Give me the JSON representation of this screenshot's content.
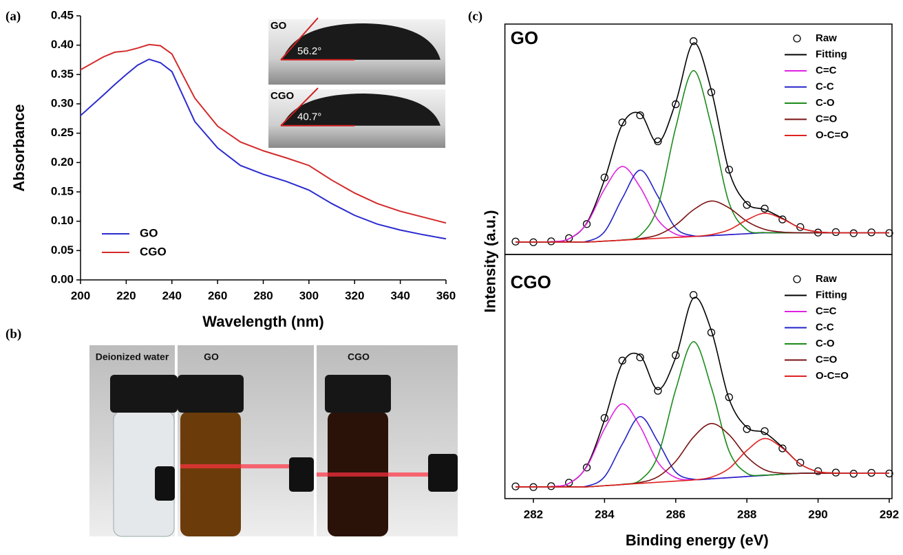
{
  "chart_data": [
    {
      "type": "line",
      "panel": "(a)",
      "x": [
        200,
        210,
        215,
        220,
        225,
        230,
        235,
        240,
        250,
        260,
        270,
        280,
        290,
        300,
        310,
        320,
        330,
        340,
        350,
        360
      ],
      "series": [
        {
          "name": "GO",
          "color": "#2b2bd0",
          "values": [
            0.28,
            0.315,
            0.333,
            0.35,
            0.366,
            0.376,
            0.37,
            0.355,
            0.27,
            0.225,
            0.195,
            0.18,
            0.168,
            0.153,
            0.13,
            0.11,
            0.095,
            0.085,
            0.077,
            0.07
          ]
        },
        {
          "name": "CGO",
          "color": "#d42a2a",
          "values": [
            0.358,
            0.38,
            0.388,
            0.39,
            0.395,
            0.401,
            0.399,
            0.385,
            0.31,
            0.262,
            0.235,
            0.22,
            0.208,
            0.195,
            0.17,
            0.148,
            0.13,
            0.117,
            0.107,
            0.097
          ]
        }
      ],
      "xlabel": "Wavelength (nm)",
      "ylabel": "Absorbance",
      "xlim": [
        200,
        360
      ],
      "xticks": [
        200,
        220,
        240,
        260,
        280,
        300,
        320,
        340,
        360
      ],
      "ylim": [
        0,
        0.45
      ],
      "yticks": [
        {
          "value": 0,
          "label": "0.00"
        },
        {
          "value": 0.05,
          "label": "0.05"
        },
        {
          "value": 0.1,
          "label": "0.10"
        },
        {
          "value": 0.15,
          "label": "0.15"
        },
        {
          "value": 0.2,
          "label": "0.20"
        },
        {
          "value": 0.25,
          "label": "0.25"
        },
        {
          "value": 0.3,
          "label": "0.30"
        },
        {
          "value": 0.35,
          "label": "0.35"
        },
        {
          "value": 0.4,
          "label": "0.40"
        },
        {
          "value": 0.45,
          "label": "0.45"
        }
      ],
      "legend": "lower left",
      "insets": [
        {
          "label": "GO",
          "angle": "56.2°"
        },
        {
          "label": "CGO",
          "angle": "40.7°"
        }
      ]
    },
    {
      "type": "line",
      "panel": "(c)",
      "title": "GO",
      "ylabel": "Intensity (a.u.)",
      "x": [
        281.5,
        282,
        282.5,
        283,
        283.5,
        284,
        284.5,
        285,
        285.5,
        286,
        286.5,
        287,
        287.5,
        288,
        288.5,
        289,
        289.5,
        290,
        290.5,
        291,
        291.5,
        292
      ],
      "xlim": [
        281.2,
        292
      ],
      "ylim": [
        0,
        100
      ],
      "legend": "upper right",
      "series": [
        {
          "name": "Raw",
          "color": "#000000",
          "mode": "markers",
          "values": [
            5.6,
            5.3,
            5.7,
            7.1,
            13.2,
            33.4,
            57.3,
            60.4,
            49.1,
            65.2,
            92.6,
            70.4,
            36.8,
            21.5,
            19.9,
            15.2,
            11.9,
            9.5,
            9.7,
            9.2,
            9.6,
            9.3
          ]
        },
        {
          "name": "Fitting",
          "color": "#000000",
          "values": [
            5.4,
            5.4,
            5.5,
            6.8,
            13.7,
            32.5,
            56.5,
            61.2,
            48.5,
            66.0,
            91.8,
            71.3,
            36.1,
            22.1,
            19.5,
            15.7,
            11.5,
            9.8,
            9.4,
            9.4,
            9.4,
            9.4
          ]
        },
        {
          "name": "C=C",
          "color": "#e020e0",
          "values": [
            5.4,
            5.4,
            5.5,
            6.8,
            13.4,
            28.4,
            38.2,
            29.2,
            15.0,
            8.8,
            7.9,
            8.2,
            8.6,
            9.0,
            9.4,
            9.4,
            9.4,
            9.4,
            9.4,
            9.4,
            9.4,
            9.4
          ]
        },
        {
          "name": "C-C",
          "color": "#2020c8",
          "values": [
            5.4,
            5.4,
            5.4,
            5.4,
            5.7,
            9.9,
            24.4,
            36.6,
            25.2,
            11.5,
            8.1,
            8.2,
            8.6,
            9.0,
            9.4,
            9.4,
            9.4,
            9.4,
            9.4,
            9.4,
            9.4,
            9.4
          ]
        },
        {
          "name": "C-O",
          "color": "#1a8a1a",
          "values": [
            5.4,
            5.4,
            5.4,
            5.4,
            5.4,
            5.8,
            6.3,
            8.3,
            20.8,
            55.1,
            79.8,
            55.9,
            22.4,
            10.7,
            9.5,
            9.4,
            9.4,
            9.4,
            9.4,
            9.4,
            9.4,
            9.4
          ]
        },
        {
          "name": "C=O",
          "color": "#7a1010",
          "values": [
            5.4,
            5.4,
            5.4,
            5.4,
            5.4,
            5.8,
            6.2,
            6.9,
            8.5,
            12.8,
            19.4,
            23.2,
            20.2,
            14.4,
            10.9,
            9.7,
            9.4,
            9.4,
            9.4,
            9.4,
            9.4,
            9.4
          ]
        },
        {
          "name": "O-C=O",
          "color": "#e02020",
          "values": [
            5.4,
            5.4,
            5.4,
            5.4,
            5.4,
            5.8,
            6.2,
            6.6,
            7.0,
            7.4,
            7.8,
            8.6,
            10.7,
            15.0,
            17.9,
            15.4,
            11.5,
            9.8,
            9.4,
            9.4,
            9.4,
            9.4
          ]
        }
      ]
    },
    {
      "type": "line",
      "title": "CGO",
      "xlabel": "Binding energy (eV)",
      "x": [
        281.5,
        282,
        282.5,
        283,
        283.5,
        284,
        284.5,
        285,
        285.5,
        286,
        286.5,
        287,
        287.5,
        288,
        288.5,
        289,
        289.5,
        290,
        290.5,
        291,
        291.5,
        292
      ],
      "xlim": [
        281.2,
        292
      ],
      "xticks": [
        282,
        284,
        286,
        288,
        290,
        292
      ],
      "ylim": [
        0,
        100
      ],
      "legend": "upper right",
      "series": [
        {
          "name": "Raw",
          "color": "#000000",
          "mode": "markers",
          "values": [
            5.3,
            5.0,
            5.4,
            6.9,
            13.5,
            35.0,
            59.9,
            61.3,
            46.8,
            62.2,
            88.4,
            72.1,
            44.0,
            30.2,
            29.3,
            21.8,
            15.6,
            11.9,
            11.3,
            10.8,
            11.2,
            10.9
          ]
        },
        {
          "name": "Fitting",
          "color": "#000000",
          "values": [
            5.1,
            5.1,
            5.2,
            6.6,
            14.1,
            34.2,
            58.8,
            62.1,
            47.3,
            61.3,
            87.1,
            73.0,
            43.2,
            30.9,
            28.6,
            22.3,
            15.0,
            11.7,
            11.1,
            11.0,
            11.0,
            11.0
          ]
        },
        {
          "name": "C=C",
          "color": "#e020e0",
          "values": [
            5.1,
            5.1,
            5.2,
            6.6,
            13.8,
            30.3,
            41.1,
            31.3,
            15.8,
            9.1,
            8.2,
            8.6,
            9.1,
            9.6,
            10.1,
            10.6,
            11.0,
            11.0,
            11.0,
            11.0,
            11.0,
            11.0
          ]
        },
        {
          "name": "C-C",
          "color": "#2020c8",
          "values": [
            5.1,
            5.1,
            5.1,
            5.1,
            5.4,
            9.5,
            23.7,
            35.6,
            24.7,
            11.5,
            8.4,
            8.6,
            9.1,
            9.6,
            10.1,
            10.6,
            11.0,
            11.0,
            11.0,
            11.0,
            11.0,
            11.0
          ]
        },
        {
          "name": "C-O",
          "color": "#1a8a1a",
          "values": [
            5.1,
            5.1,
            5.1,
            5.1,
            5.1,
            5.6,
            6.2,
            8.0,
            18.6,
            47.3,
            68.1,
            48.3,
            20.6,
            11.0,
            10.2,
            10.6,
            11.0,
            11.0,
            11.0,
            11.0,
            11.0,
            11.0
          ]
        },
        {
          "name": "C=O",
          "color": "#7a1010",
          "values": [
            5.1,
            5.1,
            5.1,
            5.1,
            5.1,
            5.6,
            6.1,
            7.0,
            9.5,
            16.2,
            26.7,
            32.6,
            27.7,
            18.2,
            12.5,
            11.0,
            11.0,
            11.0,
            11.0,
            11.0,
            11.0,
            11.0
          ]
        },
        {
          "name": "O-C=O",
          "color": "#e02020",
          "values": [
            5.1,
            5.1,
            5.1,
            5.1,
            5.1,
            5.6,
            6.1,
            6.6,
            7.1,
            7.6,
            8.1,
            9.3,
            13.1,
            20.9,
            26.1,
            21.9,
            15.0,
            11.7,
            11.1,
            11.0,
            11.0,
            11.0
          ]
        }
      ]
    }
  ],
  "photo": {
    "panel": "(b)",
    "labels": [
      "Deionized water",
      "GO",
      "CGO"
    ]
  }
}
